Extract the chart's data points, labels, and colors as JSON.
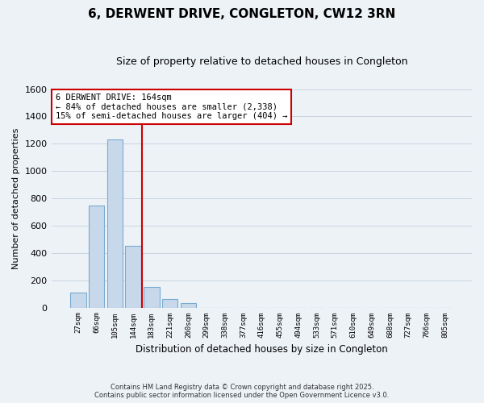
{
  "title": "6, DERWENT DRIVE, CONGLETON, CW12 3RN",
  "subtitle": "Size of property relative to detached houses in Congleton",
  "xlabel": "Distribution of detached houses by size in Congleton",
  "ylabel": "Number of detached properties",
  "bar_labels": [
    "27sqm",
    "66sqm",
    "105sqm",
    "144sqm",
    "183sqm",
    "221sqm",
    "260sqm",
    "299sqm",
    "338sqm",
    "377sqm",
    "416sqm",
    "455sqm",
    "494sqm",
    "533sqm",
    "571sqm",
    "610sqm",
    "649sqm",
    "688sqm",
    "727sqm",
    "766sqm",
    "805sqm"
  ],
  "bar_values": [
    110,
    750,
    1230,
    450,
    150,
    60,
    35,
    0,
    0,
    0,
    0,
    0,
    0,
    0,
    0,
    0,
    0,
    0,
    0,
    0,
    0
  ],
  "bar_color": "#c8d8eb",
  "bar_edge_color": "#7aaacf",
  "vline_color": "#cc0000",
  "annotation_line1": "6 DERWENT DRIVE: 164sqm",
  "annotation_line2": "← 84% of detached houses are smaller (2,338)",
  "annotation_line3": "15% of semi-detached houses are larger (404) →",
  "annotation_box_color": "#ffffff",
  "annotation_box_edge": "#cc0000",
  "ylim": [
    0,
    1600
  ],
  "yticks": [
    0,
    200,
    400,
    600,
    800,
    1000,
    1200,
    1400,
    1600
  ],
  "footer_line1": "Contains HM Land Registry data © Crown copyright and database right 2025.",
  "footer_line2": "Contains public sector information licensed under the Open Government Licence v3.0.",
  "bg_color": "#edf2f7",
  "plot_bg_color": "#edf2f7",
  "grid_color": "#c8d4e0",
  "title_fontsize": 11,
  "subtitle_fontsize": 9
}
